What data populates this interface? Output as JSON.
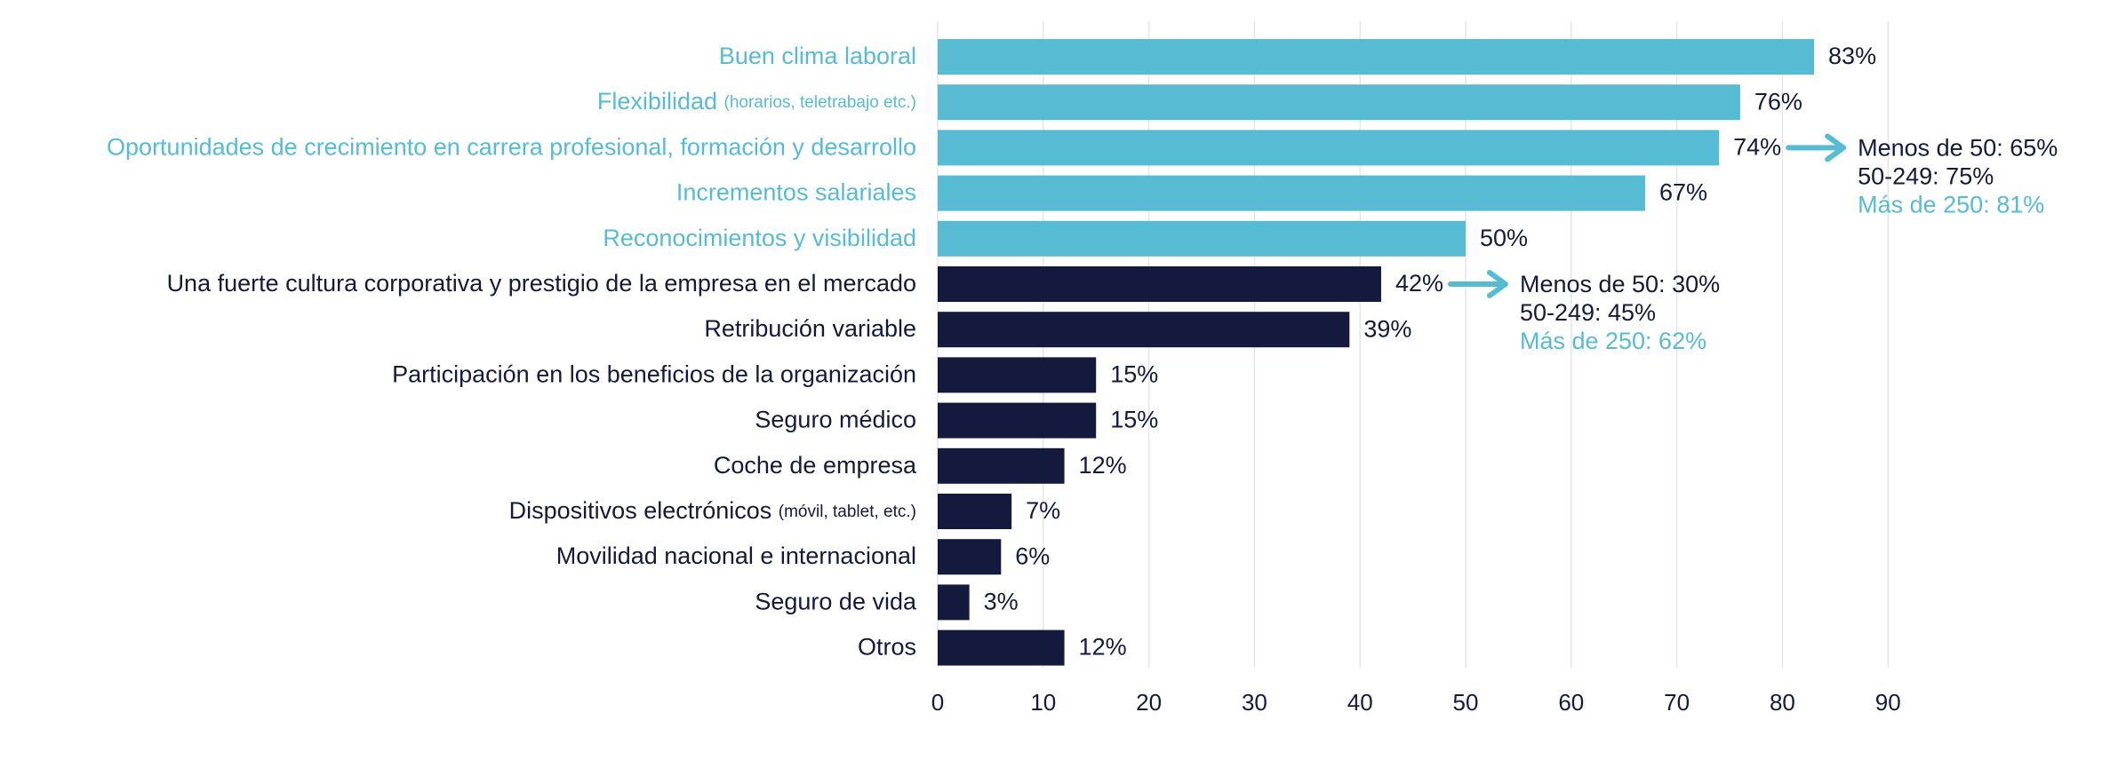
{
  "colors": {
    "highlight": "#56BBD3",
    "dark": "#131A3D",
    "grid": "#E3E6EA",
    "text": "#131A3D"
  },
  "chart_data": {
    "type": "bar",
    "orientation": "horizontal",
    "title": "",
    "xlabel": "",
    "ylabel": "",
    "xlim": [
      0,
      90
    ],
    "xticks": [
      0,
      10,
      20,
      30,
      40,
      50,
      60,
      70,
      80,
      90
    ],
    "grid": true,
    "value_suffix": "%",
    "categories": [
      {
        "label": "Buen clima laboral",
        "note": "",
        "value": 83,
        "highlight": true
      },
      {
        "label": "Flexibilidad ",
        "note": "(horarios, teletrabajo etc.)",
        "value": 76,
        "highlight": true
      },
      {
        "label": "Oportunidades de crecimiento en carrera profesional, formación y desarrollo",
        "note": "",
        "value": 74,
        "highlight": true
      },
      {
        "label": "Incrementos salariales",
        "note": "",
        "value": 67,
        "highlight": true
      },
      {
        "label": "Reconocimientos y visibilidad",
        "note": "",
        "value": 50,
        "highlight": true
      },
      {
        "label": "Una fuerte cultura corporativa y prestigio de la empresa en el mercado",
        "note": "",
        "value": 42,
        "highlight": false
      },
      {
        "label": "Retribución variable",
        "note": "",
        "value": 39,
        "highlight": false
      },
      {
        "label": "Participación en los beneficios de la organización",
        "note": "",
        "value": 15,
        "highlight": false
      },
      {
        "label": "Seguro médico",
        "note": "",
        "value": 15,
        "highlight": false
      },
      {
        "label": "Coche de empresa",
        "note": "",
        "value": 12,
        "highlight": false
      },
      {
        "label": "Dispositivos electrónicos ",
        "note": "(móvil, tablet, etc.)",
        "value": 7,
        "highlight": false
      },
      {
        "label": "Movilidad nacional e internacional",
        "note": "",
        "value": 6,
        "highlight": false
      },
      {
        "label": "Seguro de vida",
        "note": "",
        "value": 3,
        "highlight": false
      },
      {
        "label": "Otros",
        "note": "",
        "value": 12,
        "highlight": false
      }
    ],
    "annotations": [
      {
        "target_index": 2,
        "lines": [
          {
            "text": "Menos de 50: 65%",
            "highlight": false
          },
          {
            "text": "50-249: 75%",
            "highlight": false
          },
          {
            "text": "Más de 250: 81%",
            "highlight": true
          }
        ]
      },
      {
        "target_index": 5,
        "lines": [
          {
            "text": "Menos de 50: 30%",
            "highlight": false
          },
          {
            "text": "50-249: 45%",
            "highlight": false
          },
          {
            "text": "Más de 250: 62%",
            "highlight": true
          }
        ]
      }
    ]
  }
}
